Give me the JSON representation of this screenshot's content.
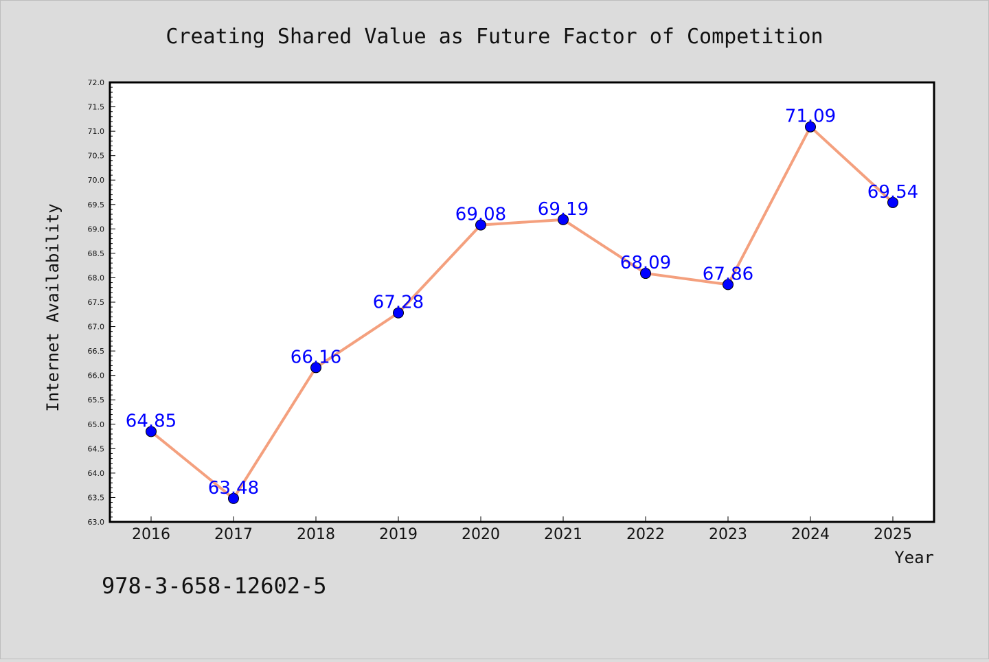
{
  "chart_data": {
    "type": "line",
    "title": "Creating Shared Value as Future Factor of Competition",
    "xlabel": "Year",
    "ylabel": "Internet Availability",
    "categories": [
      "2016",
      "2017",
      "2018",
      "2019",
      "2020",
      "2021",
      "2022",
      "2023",
      "2024",
      "2025"
    ],
    "series": [
      {
        "values": [
          64.85,
          63.48,
          66.16,
          67.28,
          69.08,
          69.19,
          68.09,
          67.86,
          71.09,
          69.54
        ],
        "data_labels": [
          "64.85",
          "63.48",
          "66.16",
          "67.28",
          "69.08",
          "69.19",
          "68.09",
          "67.86",
          "71.09",
          "69.54"
        ],
        "line_color": "#f4a07e",
        "marker_color": "#0000ff"
      }
    ],
    "ylim": [
      63.0,
      72.0
    ],
    "yticks": [
      "63.0",
      "63.5",
      "64.0",
      "64.5",
      "65.0",
      "65.5",
      "66.0",
      "66.5",
      "67.0",
      "67.5",
      "68.0",
      "68.5",
      "69.0",
      "69.5",
      "70.0",
      "70.5",
      "71.0",
      "71.5",
      "72.0"
    ],
    "grid": false,
    "legend": "none",
    "background_color": "#dcdcdc",
    "plot_background": "#ffffff",
    "label_color": "#0000ff"
  },
  "footer": {
    "isbn": "978-3-658-12602-5"
  }
}
